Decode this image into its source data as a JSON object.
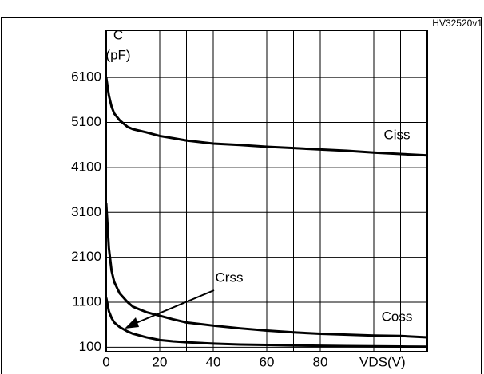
{
  "chart_data": {
    "type": "line",
    "y_label_top": "C",
    "y_label_unit": "(pF)",
    "x_label": "VDS(V)",
    "code": "HV32520v1",
    "x": [
      0,
      1,
      2,
      3,
      5,
      8,
      10,
      15,
      20,
      25,
      30,
      40,
      50,
      60,
      70,
      80,
      90,
      100,
      110,
      120
    ],
    "series": [
      {
        "name": "Ciss",
        "color": "#000000",
        "values": [
          6100,
          5700,
          5450,
          5300,
          5150,
          5000,
          4950,
          4880,
          4800,
          4750,
          4700,
          4630,
          4600,
          4560,
          4530,
          4500,
          4470,
          4430,
          4400,
          4370
        ]
      },
      {
        "name": "Coss",
        "color": "#000000",
        "values": [
          3300,
          2300,
          1800,
          1550,
          1300,
          1100,
          1000,
          880,
          800,
          720,
          650,
          580,
          520,
          470,
          430,
          400,
          380,
          360,
          350,
          320
        ]
      },
      {
        "name": "Crss",
        "color": "#000000",
        "values": [
          1200,
          900,
          750,
          650,
          550,
          450,
          400,
          320,
          260,
          230,
          210,
          180,
          160,
          150,
          140,
          130,
          125,
          120,
          115,
          110
        ]
      }
    ],
    "xlim": [
      0,
      120
    ],
    "xticks": [
      0,
      20,
      40,
      60,
      80
    ],
    "ylim": [
      0,
      7150
    ],
    "yticks": [
      100,
      1100,
      2100,
      3100,
      4100,
      5100,
      6100
    ],
    "grid": true
  }
}
